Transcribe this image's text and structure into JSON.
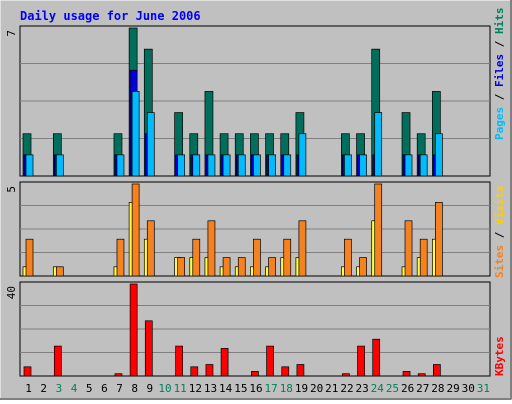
{
  "title": "Daily usage for June 2006",
  "colors": {
    "bg": "#c0c0c0",
    "frame_dark": "#808080",
    "frame_light": "#ffffff",
    "title": "#0000ff",
    "hits": "#006e5a",
    "files": "#0000e0",
    "pages": "#00bcff",
    "visits": "#f58220",
    "sites": "#ffff40",
    "kbytes": "#ff0000",
    "weekend": "#00805c",
    "weekday": "#000000",
    "grid": "#808080"
  },
  "chart_data": [
    {
      "type": "bar",
      "panel": "hits-files-pages",
      "categories": [
        "1",
        "2",
        "3",
        "4",
        "5",
        "6",
        "7",
        "8",
        "9",
        "10",
        "11",
        "12",
        "13",
        "14",
        "15",
        "16",
        "17",
        "18",
        "19",
        "20",
        "21",
        "22",
        "23",
        "24",
        "25",
        "26",
        "27",
        "28",
        "29",
        "30",
        "31"
      ],
      "y_max_label": "7",
      "ylim": [
        0,
        7
      ],
      "legend": {
        "pages": "Pages",
        "files": "Files",
        "hits": "Hits",
        "sep": " / "
      },
      "series": [
        {
          "name": "Hits",
          "values": [
            2,
            0,
            2,
            0,
            0,
            0,
            2,
            7,
            6,
            0,
            3,
            2,
            4,
            2,
            2,
            2,
            2,
            2,
            3,
            0,
            0,
            2,
            2,
            6,
            0,
            3,
            2,
            4,
            0,
            0,
            0
          ]
        },
        {
          "name": "Files",
          "values": [
            1,
            0,
            1,
            0,
            0,
            0,
            1,
            5,
            2,
            0,
            1,
            1,
            1,
            1,
            1,
            1,
            1,
            1,
            1,
            0,
            0,
            1,
            1,
            1,
            0,
            1,
            1,
            1,
            0,
            0,
            0
          ]
        },
        {
          "name": "Pages",
          "values": [
            1,
            0,
            1,
            0,
            0,
            0,
            1,
            4,
            3,
            0,
            1,
            1,
            1,
            1,
            1,
            1,
            1,
            1,
            2,
            0,
            0,
            1,
            1,
            3,
            0,
            1,
            1,
            2,
            0,
            0,
            0
          ]
        }
      ]
    },
    {
      "type": "bar",
      "panel": "visits-sites",
      "categories": [
        "1",
        "2",
        "3",
        "4",
        "5",
        "6",
        "7",
        "8",
        "9",
        "10",
        "11",
        "12",
        "13",
        "14",
        "15",
        "16",
        "17",
        "18",
        "19",
        "20",
        "21",
        "22",
        "23",
        "24",
        "25",
        "26",
        "27",
        "28",
        "29",
        "30",
        "31"
      ],
      "y_max_label": "5",
      "ylim": [
        0,
        5
      ],
      "legend": {
        "sites": "Sites",
        "visits": "Visits",
        "sep": " / "
      },
      "series": [
        {
          "name": "Sites",
          "values": [
            0.5,
            0,
            0.5,
            0,
            0,
            0,
            0.5,
            4,
            2,
            0,
            1,
            1,
            1,
            0.5,
            0.5,
            0.5,
            0.5,
            1,
            1,
            0,
            0,
            0.5,
            0.5,
            3,
            0,
            0.5,
            1,
            2,
            0,
            0,
            0
          ]
        },
        {
          "name": "Visits",
          "values": [
            2,
            0,
            0.5,
            0,
            0,
            0,
            2,
            5,
            3,
            0,
            1,
            2,
            3,
            1,
            1,
            2,
            1,
            2,
            3,
            0,
            0,
            2,
            1,
            5,
            0,
            3,
            2,
            4,
            0,
            0,
            0
          ]
        }
      ]
    },
    {
      "type": "bar",
      "panel": "kbytes",
      "categories": [
        "1",
        "2",
        "3",
        "4",
        "5",
        "6",
        "7",
        "8",
        "9",
        "10",
        "11",
        "12",
        "13",
        "14",
        "15",
        "16",
        "17",
        "18",
        "19",
        "20",
        "21",
        "22",
        "23",
        "24",
        "25",
        "26",
        "27",
        "28",
        "29",
        "30",
        "31"
      ],
      "y_max_label": "40",
      "ylim": [
        0,
        40
      ],
      "legend": {
        "kbytes": "KBytes"
      },
      "series": [
        {
          "name": "KBytes",
          "values": [
            4,
            0,
            13,
            0,
            0,
            0,
            1,
            40,
            24,
            0,
            13,
            4,
            5,
            12,
            0,
            2,
            13,
            4,
            5,
            0,
            0,
            1,
            13,
            16,
            0,
            2,
            1,
            5,
            0,
            0,
            0
          ]
        }
      ]
    }
  ],
  "x_labels": [
    "1",
    "2",
    "3",
    "4",
    "5",
    "6",
    "7",
    "8",
    "9",
    "10",
    "11",
    "12",
    "13",
    "14",
    "15",
    "16",
    "17",
    "18",
    "19",
    "20",
    "21",
    "22",
    "23",
    "24",
    "25",
    "26",
    "27",
    "28",
    "29",
    "30",
    "31"
  ],
  "weekend_days": [
    3,
    4,
    10,
    11,
    17,
    18,
    24,
    25,
    31
  ]
}
